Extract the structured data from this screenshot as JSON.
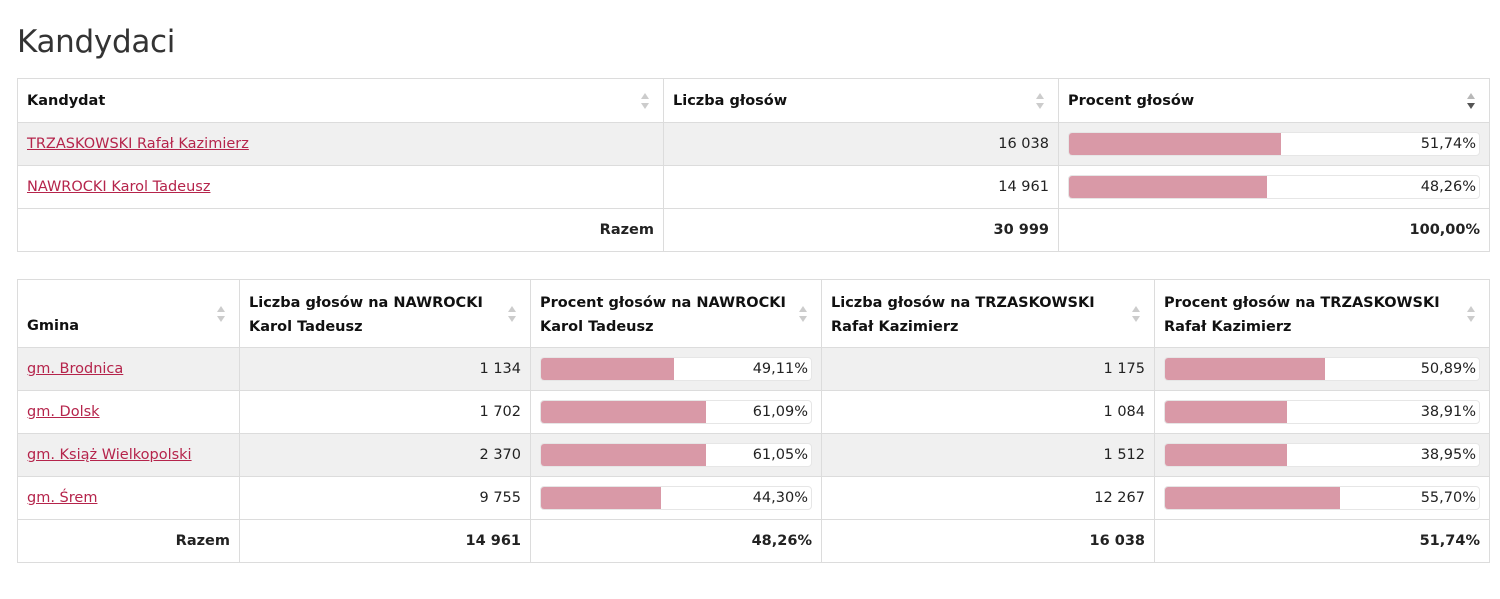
{
  "title": "Kandydaci",
  "colors": {
    "accent": "#b5244b",
    "bar": "#d999a7",
    "row_alt": "#f0f0f0"
  },
  "candidates_table": {
    "headers": [
      "Kandydat",
      "Liczba głosów",
      "Procent głosów"
    ],
    "rows": [
      {
        "name": "TRZASKOWSKI Rafał Kazimierz",
        "votes": "16 038",
        "percent": "51,74%",
        "share": 51.74
      },
      {
        "name": "NAWROCKI Karol Tadeusz",
        "votes": "14 961",
        "percent": "48,26%",
        "share": 48.26
      }
    ],
    "total": {
      "label": "Razem",
      "votes": "30 999",
      "percent": "100,00%"
    }
  },
  "gminy_table": {
    "headers": [
      "Gmina",
      "Liczba głosów na NAWROCKI Karol Tadeusz",
      "Procent głosów na NAWROCKI Karol Tadeusz",
      "Liczba głosów na TRZASKOWSKI Rafał Kazimierz",
      "Procent głosów na TRZASKOWSKI Rafał Kazimierz"
    ],
    "rows": [
      {
        "gmina": "gm. Brodnica",
        "n_votes": "1 134",
        "n_pct": "49,11%",
        "n_share": 49.11,
        "t_votes": "1 175",
        "t_pct": "50,89%",
        "t_share": 50.89
      },
      {
        "gmina": "gm. Dolsk",
        "n_votes": "1 702",
        "n_pct": "61,09%",
        "n_share": 61.09,
        "t_votes": "1 084",
        "t_pct": "38,91%",
        "t_share": 38.91
      },
      {
        "gmina": "gm. Książ Wielkopolski",
        "n_votes": "2 370",
        "n_pct": "61,05%",
        "n_share": 61.05,
        "t_votes": "1 512",
        "t_pct": "38,95%",
        "t_share": 38.95
      },
      {
        "gmina": "gm. Śrem",
        "n_votes": "9 755",
        "n_pct": "44,30%",
        "n_share": 44.3,
        "t_votes": "12 267",
        "t_pct": "55,70%",
        "t_share": 55.7
      }
    ],
    "total": {
      "label": "Razem",
      "n_votes": "14 961",
      "n_pct": "48,26%",
      "t_votes": "16 038",
      "t_pct": "51,74%"
    }
  }
}
